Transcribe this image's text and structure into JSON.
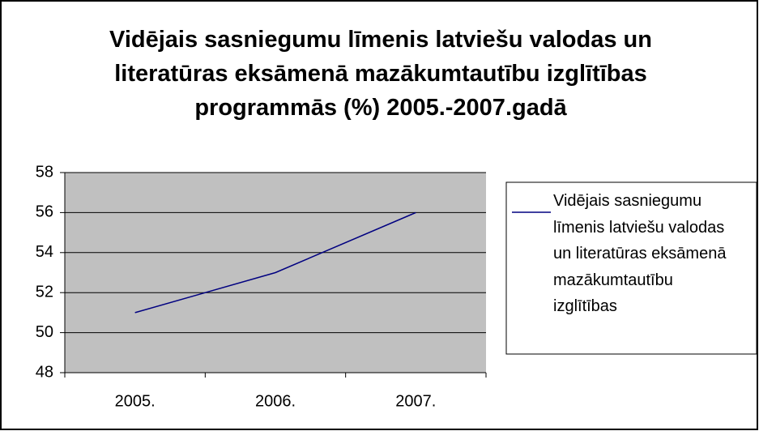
{
  "chart_data": {
    "type": "line",
    "title": "Vidējais sasniegumu līmenis latviešu valodas un literatūras eksāmenā mazākumtautību izglītības programmās (%) 2005.-2007.gadā",
    "categories": [
      "2005.",
      "2006.",
      "2007."
    ],
    "series": [
      {
        "name": "Vidējais sasniegumu līmenis latviešu valodas un literatūras eksāmenā mazākumtautību izglītības",
        "color": "#000080",
        "values": [
          51,
          53,
          56
        ]
      }
    ],
    "ylim": [
      48,
      58
    ],
    "yticks": [
      48,
      50,
      52,
      54,
      56,
      58
    ],
    "grid": true,
    "legend": "right"
  }
}
